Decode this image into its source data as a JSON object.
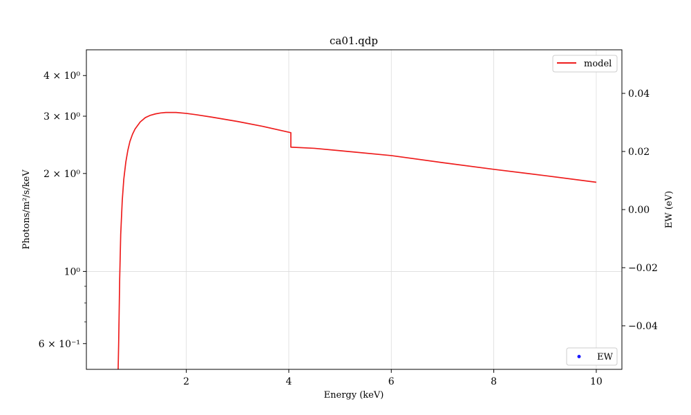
{
  "chart_data": {
    "type": "line",
    "title": "ca01.qdp",
    "xlabel": "Energy (keV)",
    "ylabel_left": "Photons/m²/s/keV",
    "ylabel_right": "EW (eV)",
    "xlim": [
      0.05,
      10.5
    ],
    "ylim_left": [
      0.5,
      4.8
    ],
    "yscale_left": "log",
    "ylim_right": [
      -0.055,
      0.055
    ],
    "grid": true,
    "x_ticks": [
      2,
      4,
      6,
      8,
      10
    ],
    "y_left_major_ticks": [
      {
        "value": 0.6,
        "label": "6 × 10⁻¹"
      },
      {
        "value": 1.0,
        "label": "10⁰"
      },
      {
        "value": 2.0,
        "label": "2 × 10⁰"
      },
      {
        "value": 3.0,
        "label": "3 × 10⁰"
      },
      {
        "value": 4.0,
        "label": "4 × 10⁰"
      }
    ],
    "y_left_minor_ticks": [
      0.7,
      0.8,
      0.9
    ],
    "y_right_ticks": [
      -0.04,
      -0.02,
      0.0,
      0.02,
      0.04
    ],
    "y_right_tick_labels": [
      "−0.04",
      "−0.02",
      "0.00",
      "0.02",
      "0.04"
    ],
    "series": [
      {
        "name": "model",
        "color": "#ee1c1c",
        "axis": "left",
        "x": [
          0.67,
          0.68,
          0.7,
          0.72,
          0.75,
          0.78,
          0.82,
          0.86,
          0.9,
          0.95,
          1.0,
          1.1,
          1.2,
          1.3,
          1.4,
          1.5,
          1.6,
          1.7,
          1.8,
          2.0,
          2.2,
          2.5,
          3.0,
          3.5,
          4.04,
          4.04,
          4.04,
          4.5,
          5.0,
          6.0,
          7.0,
          8.0,
          9.0,
          10.0
        ],
        "y": [
          0.5,
          0.6,
          0.95,
          1.3,
          1.65,
          1.92,
          2.17,
          2.36,
          2.51,
          2.64,
          2.74,
          2.88,
          2.97,
          3.02,
          3.05,
          3.07,
          3.08,
          3.08,
          3.08,
          3.06,
          3.03,
          2.98,
          2.89,
          2.79,
          2.67,
          2.67,
          2.41,
          2.39,
          2.35,
          2.27,
          2.16,
          2.06,
          1.97,
          1.88
        ]
      }
    ],
    "legend_right": [
      {
        "name": "EW",
        "color": "#1a1aff",
        "marker": "dot",
        "placement": "bottom-right"
      }
    ],
    "legend_placement": "top-right"
  }
}
